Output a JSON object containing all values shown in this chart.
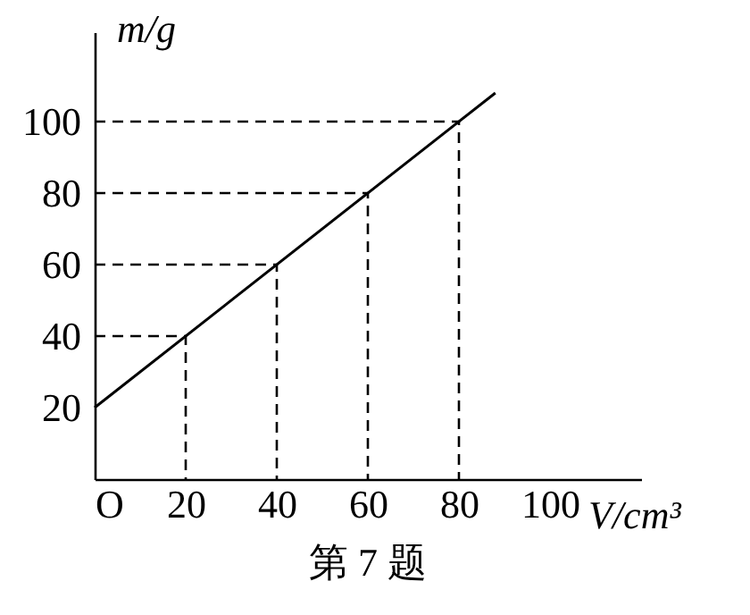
{
  "chart_data": {
    "type": "line",
    "xlabel": "V/cm³",
    "ylabel": "m/g",
    "annotations": [
      "第 7 题"
    ],
    "xlim": [
      0,
      120
    ],
    "ylim": [
      0,
      125
    ],
    "xticks": [
      {
        "value": 0,
        "label": "O"
      },
      20,
      40,
      60,
      80,
      100
    ],
    "yticks": [
      20,
      40,
      60,
      80,
      100
    ],
    "marker": "none",
    "series": [
      {
        "color": "#000000",
        "x": [
          0,
          88
        ],
        "values": [
          20,
          108
        ],
        "line_style": "solid"
      },
      {
        "color": "#000000",
        "x": [
          0,
          20,
          20
        ],
        "values": [
          40,
          40,
          0
        ],
        "line_style": "dashed"
      },
      {
        "color": "#000000",
        "x": [
          0,
          40,
          40
        ],
        "values": [
          60,
          60,
          0
        ],
        "line_style": "dashed"
      },
      {
        "color": "#000000",
        "x": [
          0,
          60,
          60
        ],
        "values": [
          80,
          80,
          0
        ],
        "line_style": "dashed"
      },
      {
        "color": "#000000",
        "x": [
          0,
          80,
          80
        ],
        "values": [
          100,
          100,
          0
        ],
        "line_style": "dashed"
      }
    ]
  }
}
